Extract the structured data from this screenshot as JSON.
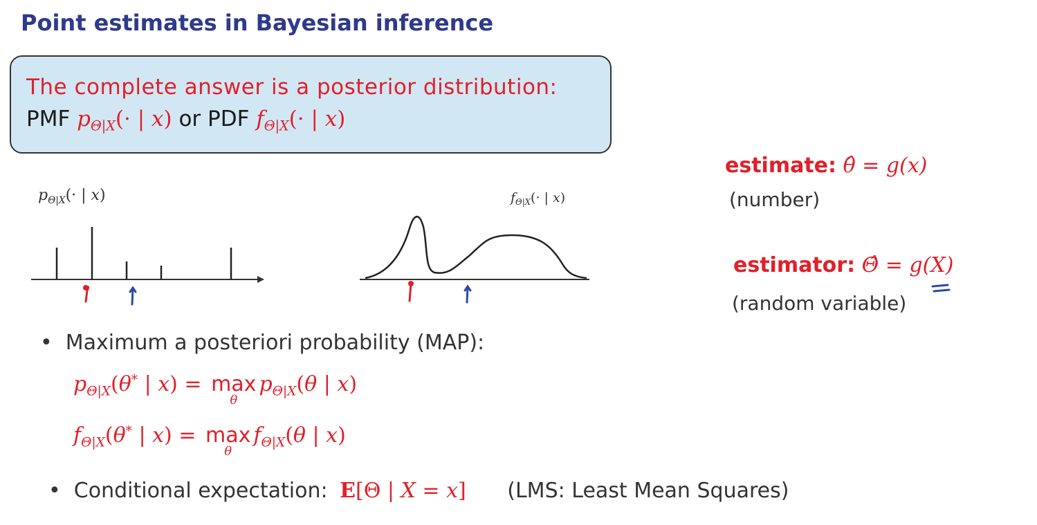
{
  "slide": {
    "title": "Point estimates in Bayesian inference",
    "box": {
      "line1": "The complete answer is a posterior distribution:",
      "pmf_word": "PMF",
      "or_pdf_word": "or PDF"
    },
    "pmf_plot_label": "pΘ|X(· | x)",
    "pdf_plot_label": "fΘ|X(· | x)",
    "estimate": {
      "keyword": "estimate:",
      "formula": "θ̂ = g(x)",
      "note": "(number)"
    },
    "estimator": {
      "keyword": "estimator:",
      "formula": "Θ̂ = g(X)",
      "note": "(random variable)"
    },
    "bullet_map": "Maximum a posteriori probability (MAP):",
    "bullet_cond": "Conditional expectation:",
    "cond_formula": "E[Θ | X = x]",
    "lms_note": "(LMS: Least Mean Squares)",
    "colors": {
      "title": "#2e3a8c",
      "accent": "#e0202a",
      "box": "#d2e7f4",
      "ink_blue": "#2b4aa8"
    }
  }
}
